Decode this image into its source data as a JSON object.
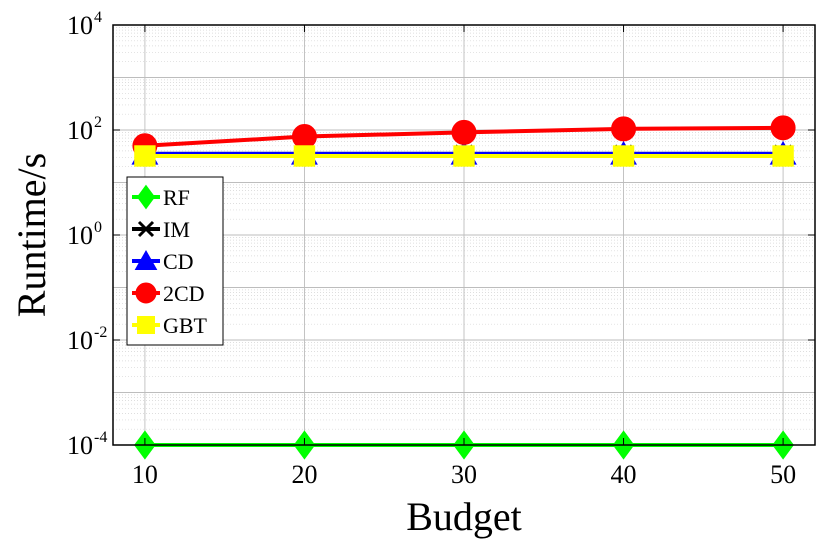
{
  "chart_data": {
    "type": "line",
    "title": "",
    "xlabel": "Budget",
    "ylabel": "Runtime/s",
    "x": [
      10,
      20,
      30,
      40,
      50
    ],
    "xlim": [
      8,
      52
    ],
    "ylim": [
      0.0001,
      10000
    ],
    "yscale": "log",
    "x_ticks": [
      "10",
      "20",
      "30",
      "40",
      "50"
    ],
    "y_ticks": [
      {
        "base": "10",
        "exp": "-4",
        "value": 0.0001
      },
      {
        "base": "10",
        "exp": "-2",
        "value": 0.01
      },
      {
        "base": "10",
        "exp": "0",
        "value": 1
      },
      {
        "base": "10",
        "exp": "2",
        "value": 100
      },
      {
        "base": "10",
        "exp": "4",
        "value": 10000
      }
    ],
    "grid": true,
    "legend_position": "left",
    "series": [
      {
        "name": "RF",
        "values": [
          0.0001,
          0.0001,
          0.0001,
          0.0001,
          0.0001
        ],
        "color": "#00ff00",
        "marker": "diamond"
      },
      {
        "name": "IM",
        "values": [
          35,
          35,
          35,
          35,
          35
        ],
        "color": "#000000",
        "marker": "x"
      },
      {
        "name": "CD",
        "values": [
          35,
          35,
          35,
          35,
          35
        ],
        "color": "#0000ff",
        "marker": "triangle"
      },
      {
        "name": "2CD",
        "values": [
          50,
          75,
          90,
          105,
          110
        ],
        "color": "#ff0000",
        "marker": "circle"
      },
      {
        "name": "GBT",
        "values": [
          32,
          32,
          32,
          32,
          32
        ],
        "color": "#ffff00",
        "marker": "square"
      }
    ]
  }
}
